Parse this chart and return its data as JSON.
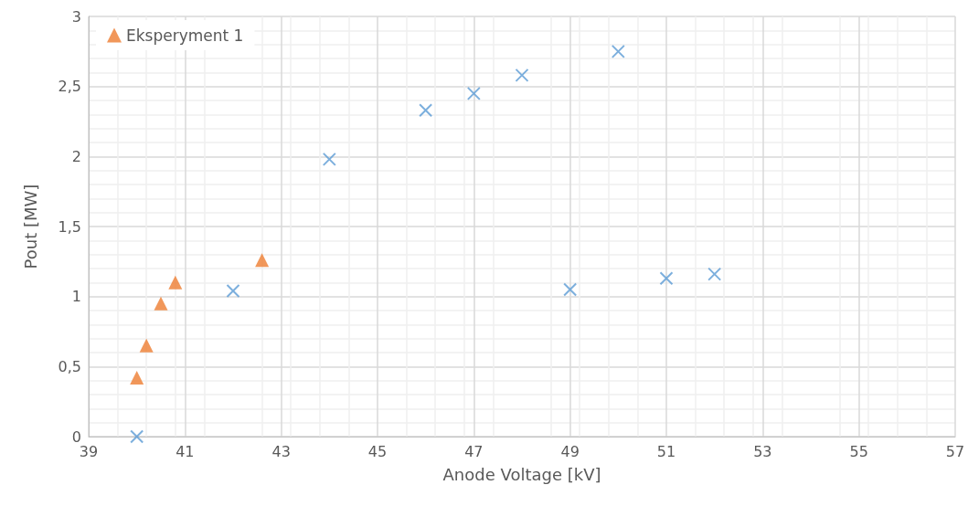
{
  "chart_data": {
    "type": "scatter",
    "xlabel": "Anode Voltage [kV]",
    "ylabel": "Pout [MW]",
    "series": [
      {
        "color": "#5b9bd5",
        "marker": "cross",
        "x": [
          40,
          42,
          44,
          46,
          47,
          48,
          49,
          50,
          51,
          52
        ],
        "values": [
          0,
          1.04,
          1.98,
          2.33,
          2.45,
          2.58,
          1.05,
          2.75,
          1.13,
          1.16
        ]
      },
      {
        "name": "Eksperyment 1",
        "color": "#ed7d31",
        "marker": "triangle",
        "x": [
          40,
          40.2,
          40.5,
          40.8,
          42.6
        ],
        "values": [
          0.42,
          0.65,
          0.95,
          1.1,
          1.26
        ]
      }
    ],
    "xlim": [
      39,
      57
    ],
    "xticks": [
      39,
      41,
      43,
      45,
      47,
      49,
      51,
      53,
      55,
      57
    ],
    "ylim": [
      0,
      3
    ],
    "yticks": [
      0,
      {
        "value": 0.5,
        "label": "0,5"
      },
      1,
      {
        "value": 1.5,
        "label": "1,5"
      },
      2,
      {
        "value": 2.5,
        "label": "2,5"
      },
      3
    ],
    "grid": true,
    "legend": "top left"
  }
}
